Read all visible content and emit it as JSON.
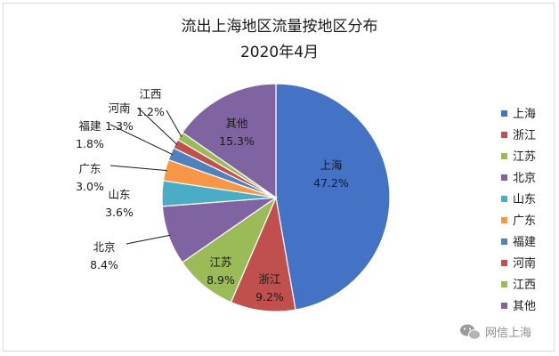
{
  "chart_data": {
    "type": "pie",
    "title": "流出上海地区流量按地区分布",
    "subtitle": "2020年4月",
    "categories": [
      "上海",
      "浙江",
      "江苏",
      "北京",
      "山东",
      "广东",
      "福建",
      "河南",
      "江西",
      "其他"
    ],
    "values": [
      47.2,
      9.2,
      8.9,
      8.4,
      3.6,
      3.0,
      1.8,
      1.3,
      1.2,
      15.3
    ],
    "value_labels": [
      "47.2%",
      "9.2%",
      "8.9%",
      "8.4%",
      "3.6%",
      "3.0%",
      "1.8%",
      "1.3%",
      "1.2%",
      "15.3%"
    ],
    "colors": [
      "#4472C4",
      "#C0504D",
      "#9BBB59",
      "#8064A2",
      "#4BACC6",
      "#F79646",
      "#4F81BD",
      "#C0504D",
      "#9BBB59",
      "#8064A2"
    ],
    "legend_placement": "right",
    "start_angle": "top",
    "direction": "clockwise"
  },
  "watermark": "网信上海"
}
